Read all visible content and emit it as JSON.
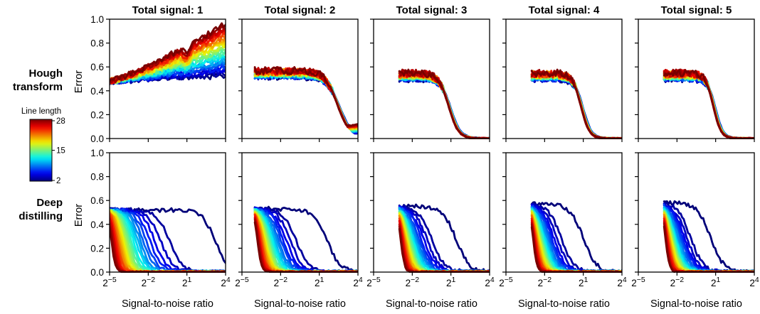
{
  "chart_data": {
    "type": "line",
    "x_scale": "log2",
    "x_ticks": [
      -5,
      -2,
      1,
      4
    ],
    "x_tick_base": "2",
    "xlim_log2": [
      -5,
      4
    ],
    "ylim": [
      0,
      1
    ],
    "y_ticks": [
      "0.0",
      "0.2",
      "0.4",
      "0.6",
      "0.8",
      "1.0"
    ],
    "xlabel": "Signal-to-noise ratio",
    "ylabel": "Error",
    "grid": false,
    "columns": [
      "Total signal: 1",
      "Total signal: 2",
      "Total signal: 3",
      "Total signal: 4",
      "Total signal: 5"
    ],
    "rows": [
      "Hough\ntransform",
      "Deep\ndistilling"
    ],
    "colorbar": {
      "title": "Line length",
      "min": 2,
      "max": 28,
      "ticks": [
        "28",
        "15",
        "2"
      ],
      "colormap": "jet"
    },
    "line_lengths": [
      2,
      3,
      4,
      5,
      6,
      7,
      8,
      9,
      10,
      11,
      12,
      13,
      14,
      15,
      16,
      17,
      18,
      19,
      20,
      21,
      22,
      23,
      24,
      25,
      26,
      27,
      28
    ],
    "hough": {
      "description_free_params": true,
      "start_log2": [
        -5,
        -4,
        -3,
        -3,
        -3
      ],
      "plateau": [
        0.5,
        0.52,
        0.5,
        0.5,
        0.5
      ],
      "drop_center_log2": [
        null,
        2.6,
        1.0,
        1.0,
        1.0
      ],
      "drop_width": [
        null,
        0.9,
        0.7,
        0.6,
        0.55
      ],
      "endpoint_total1": {
        "short": 0.53,
        "long": 0.96
      },
      "endpoint_total2": {
        "short": 0.05,
        "long": 0.12
      }
    },
    "deep": {
      "start_log2": [
        -5,
        -4,
        -3,
        -3,
        -3
      ],
      "plateau": [
        0.52,
        0.53,
        0.55,
        0.57,
        0.58
      ],
      "drop_center_short_log2": [
        3.2,
        1.6,
        1.4,
        1.0,
        0.6
      ],
      "drop_center_long_log2": [
        -4.85,
        -3.8,
        -2.9,
        -2.9,
        -2.9
      ]
    }
  }
}
